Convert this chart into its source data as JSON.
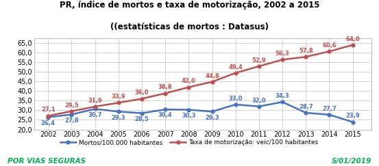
{
  "title_line1": "PR, índice de mortos e taxa de motorização, 2002 a 2015",
  "title_line2": "((estatísticas de mortos : Datasus)",
  "years": [
    2002,
    2003,
    2004,
    2005,
    2006,
    2007,
    2008,
    2009,
    2010,
    2011,
    2012,
    2013,
    2014,
    2015
  ],
  "mortos": [
    26.4,
    27.8,
    30.7,
    29.3,
    28.5,
    30.4,
    30.3,
    29.3,
    33.0,
    32.0,
    34.3,
    28.7,
    27.7,
    23.9
  ],
  "taxa": [
    27.1,
    29.5,
    31.9,
    33.9,
    36.0,
    38.8,
    42.0,
    44.8,
    49.4,
    52.9,
    56.3,
    57.8,
    60.6,
    64.0
  ],
  "mortos_labels": [
    "26,4",
    "27,8",
    "30,7",
    "29,3",
    "28,5",
    "30,4",
    "30,3",
    "29,3",
    "33,0",
    "32,0",
    "34,3",
    "28,7",
    "27,7",
    "23,9"
  ],
  "taxa_labels": [
    "27,1",
    "29,5",
    "31,9",
    "33,9",
    "36,0",
    "38,8",
    "42,0",
    "44,8",
    "49,4",
    "52,9",
    "56,3",
    "57,8",
    "60,6",
    "64,0"
  ],
  "mortos_color": "#4472C4",
  "taxa_color": "#C0504D",
  "ylim_min": 20.0,
  "ylim_max": 67.5,
  "yticks": [
    20.0,
    25.0,
    30.0,
    35.0,
    40.0,
    45.0,
    50.0,
    55.0,
    60.0,
    65.0
  ],
  "bg_color": "#FFFFFF",
  "grid_color": "#BFBFBF",
  "legend_mortos": "Mortos/100.000 habitantes",
  "legend_taxa": "Taxa de motorização: veic/100 habitantes",
  "footer_left": "POR VIAS SEGURAS",
  "footer_right": "5/01/2019",
  "footer_color": "#00B050",
  "mortos_va": [
    "top",
    "top",
    "top",
    "top",
    "top",
    "top",
    "top",
    "top",
    "bottom",
    "bottom",
    "bottom",
    "bottom",
    "bottom",
    "bottom"
  ],
  "mortos_dy": [
    -3,
    -3,
    -3,
    -3,
    -3,
    -3,
    -3,
    -3,
    3,
    3,
    3,
    3,
    3,
    3
  ],
  "taxa_dy": [
    3,
    3,
    3,
    3,
    3,
    3,
    3,
    3,
    3,
    3,
    3,
    3,
    3,
    3
  ]
}
